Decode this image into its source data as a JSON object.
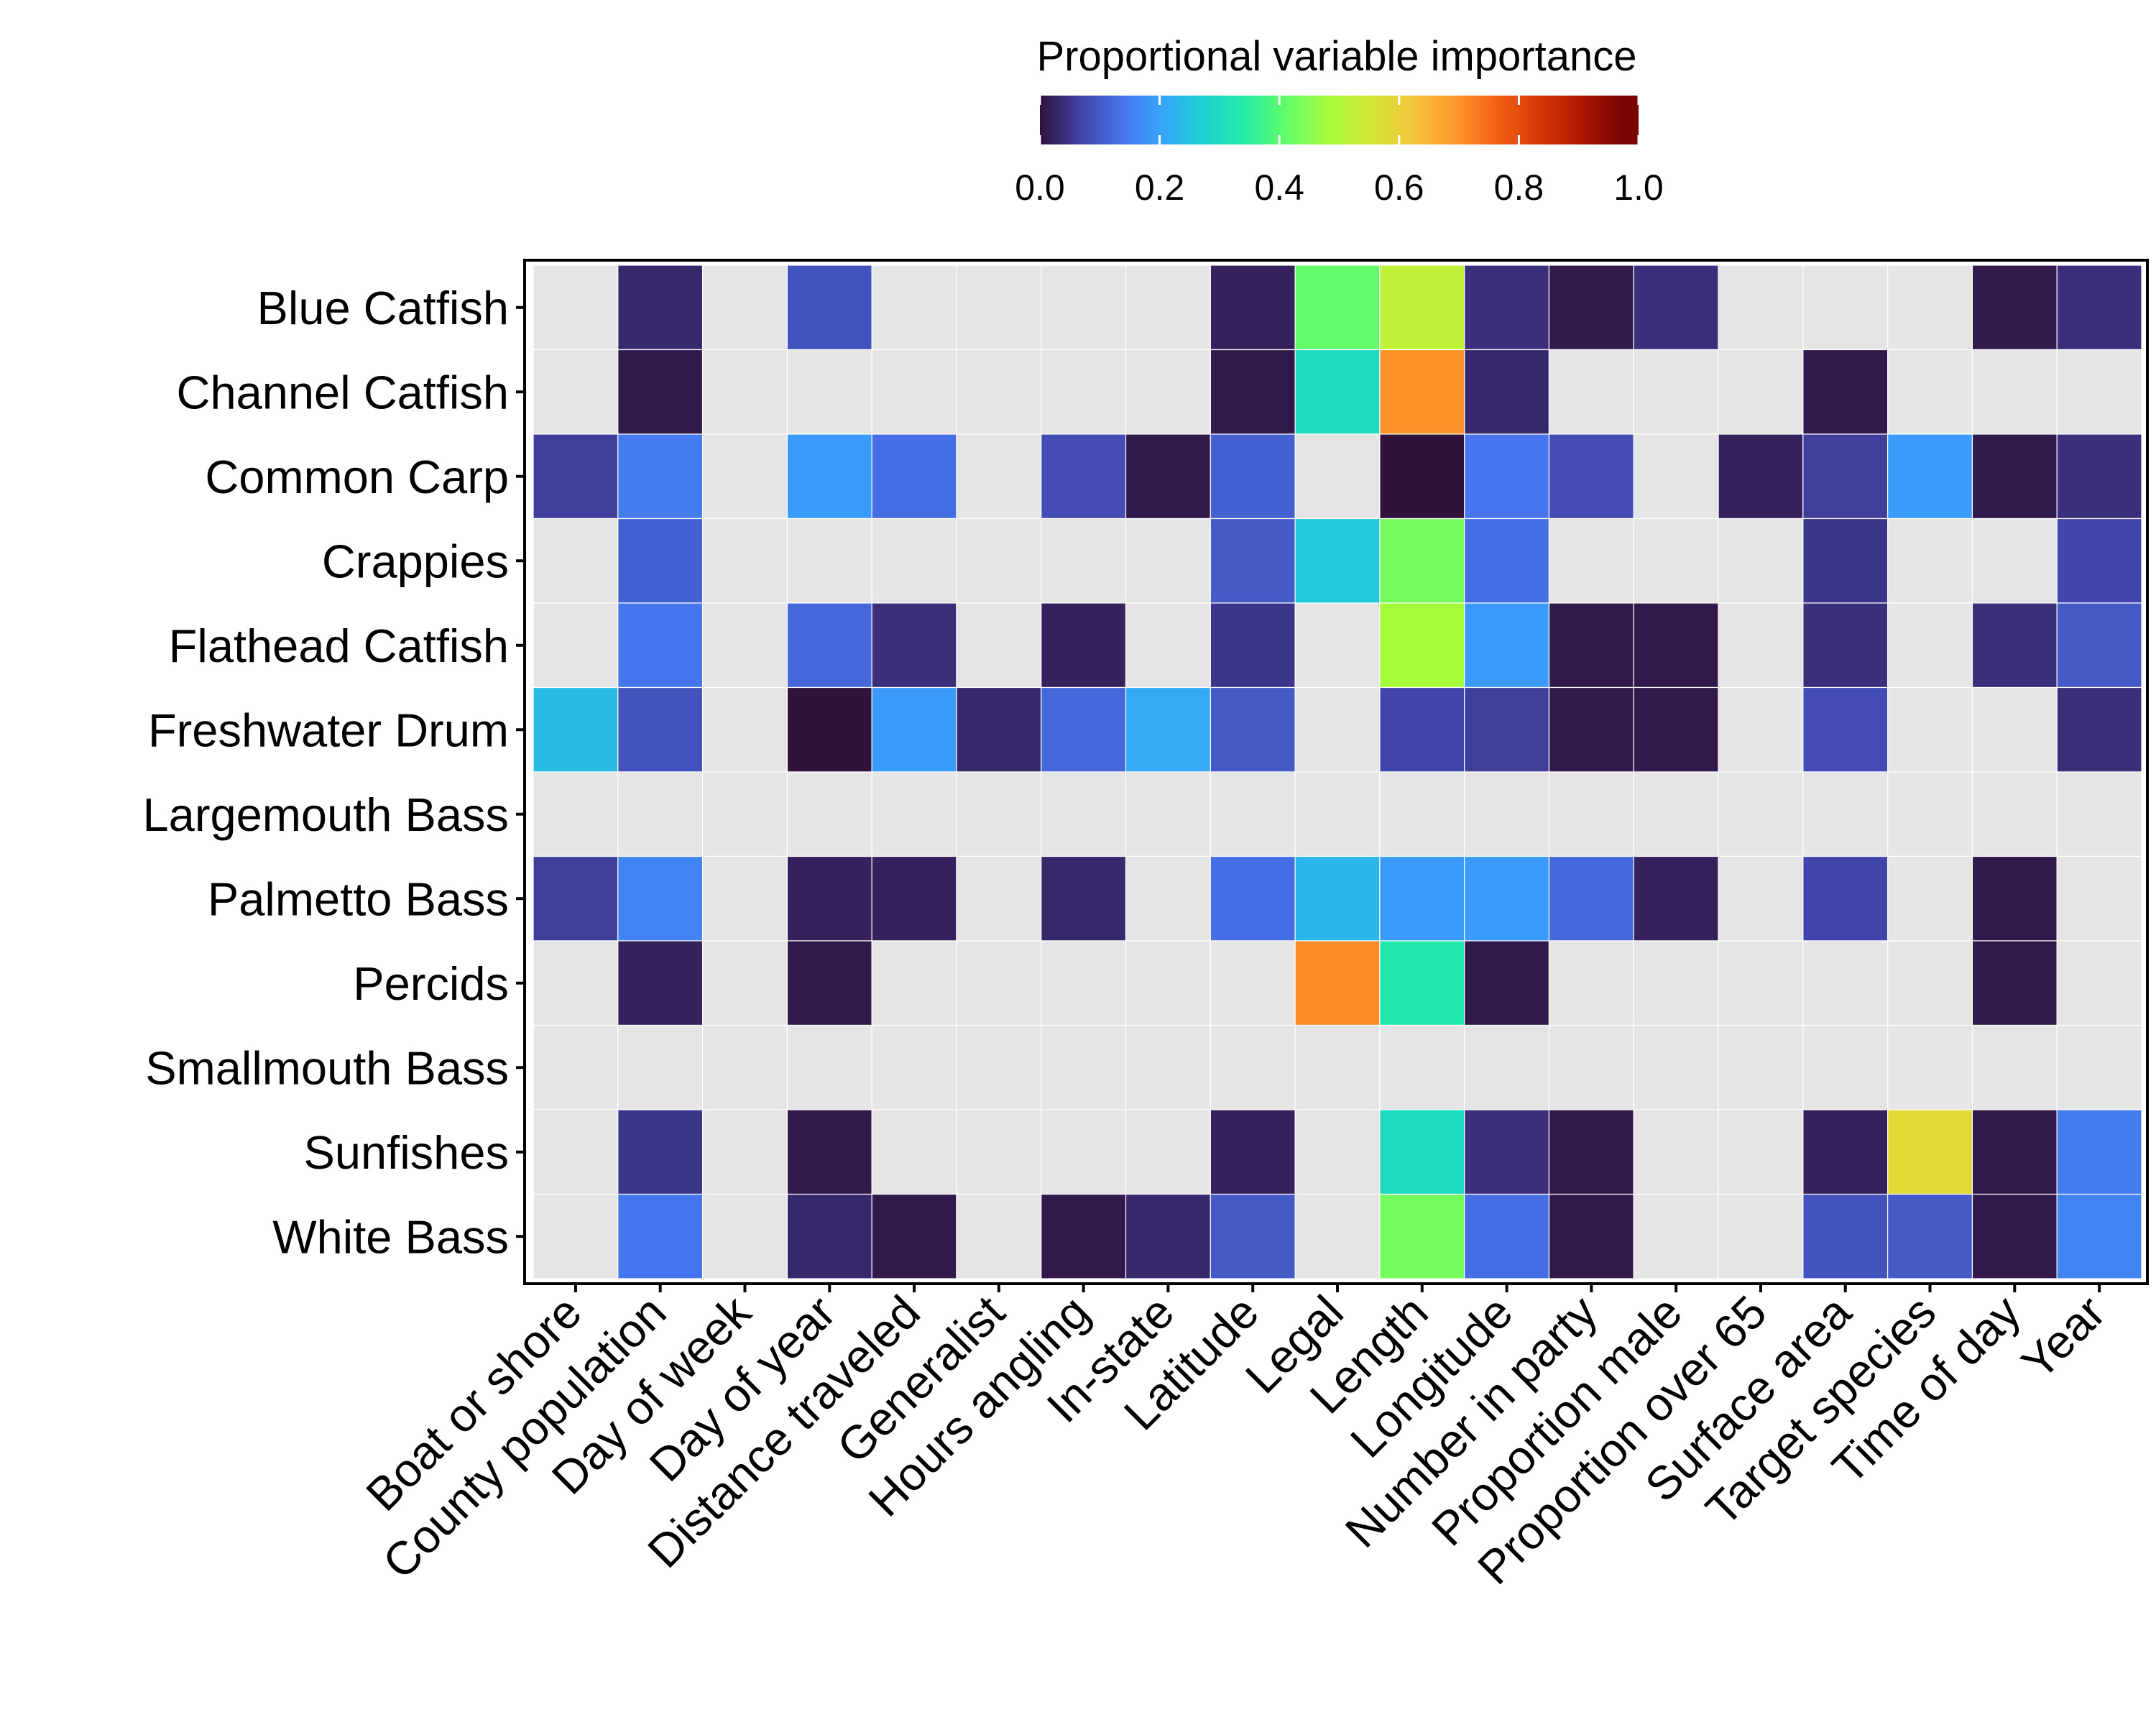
{
  "chart_data": {
    "type": "heatmap",
    "legend": {
      "title": "Proportional variable importance",
      "position": "top",
      "range": [
        0,
        1
      ],
      "ticks": [
        0.0,
        0.2,
        0.4,
        0.6,
        0.8,
        1.0
      ],
      "tick_labels": [
        "0.0",
        "0.2",
        "0.4",
        "0.6",
        "0.8",
        "1.0"
      ],
      "colormap": "turbo"
    },
    "na_color": "#e5e5e5",
    "rows": [
      "Blue Catfish",
      "Channel Catfish",
      "Common Carp",
      "Crappies",
      "Flathead Catfish",
      "Freshwater Drum",
      "Largemouth Bass",
      "Palmetto Bass",
      "Percids",
      "Smallmouth Bass",
      "Sunfishes",
      "White Bass"
    ],
    "columns": [
      "Boat or shore",
      "County population",
      "Day of week",
      "Day of year",
      "Distance traveled",
      "Generalist",
      "Hours angling",
      "In-state",
      "Latitude",
      "Legal",
      "Length",
      "Longitude",
      "Number in party",
      "Proportion male",
      "Proportion over 65",
      "Surface area",
      "Target species",
      "Time of day",
      "Year"
    ],
    "values": [
      [
        null,
        0.03,
        null,
        0.09,
        null,
        null,
        null,
        null,
        0.02,
        0.41,
        0.52,
        0.04,
        0.01,
        0.04,
        null,
        null,
        null,
        0.01,
        0.04
      ],
      [
        null,
        0.01,
        null,
        null,
        null,
        null,
        null,
        null,
        0.01,
        0.3,
        0.7,
        0.03,
        null,
        null,
        null,
        0.01,
        null,
        null,
        null
      ],
      [
        0.06,
        0.15,
        null,
        0.19,
        0.13,
        null,
        0.08,
        0.01,
        0.11,
        null,
        0.0,
        0.14,
        0.08,
        null,
        0.02,
        0.06,
        0.19,
        0.01,
        0.04
      ],
      [
        null,
        0.11,
        null,
        null,
        null,
        null,
        null,
        null,
        0.1,
        0.26,
        0.43,
        0.13,
        null,
        null,
        null,
        0.05,
        null,
        null,
        0.07
      ],
      [
        null,
        0.14,
        null,
        0.12,
        0.04,
        null,
        0.02,
        null,
        0.05,
        null,
        0.48,
        0.19,
        0.01,
        0.01,
        null,
        0.04,
        null,
        0.04,
        0.1
      ],
      [
        0.24,
        0.09,
        null,
        0.0,
        0.19,
        0.03,
        0.12,
        0.21,
        0.1,
        null,
        0.07,
        0.06,
        0.01,
        0.01,
        null,
        0.08,
        null,
        null,
        0.04
      ],
      [
        null,
        null,
        null,
        null,
        null,
        null,
        null,
        null,
        null,
        null,
        null,
        null,
        null,
        null,
        null,
        null,
        null,
        null,
        null
      ],
      [
        0.06,
        0.16,
        null,
        0.02,
        0.02,
        null,
        0.03,
        null,
        0.13,
        0.23,
        0.19,
        0.19,
        0.12,
        0.02,
        null,
        0.07,
        null,
        0.01,
        null
      ],
      [
        null,
        0.02,
        null,
        0.01,
        null,
        null,
        null,
        null,
        null,
        0.71,
        0.33,
        0.01,
        null,
        null,
        null,
        null,
        null,
        0.01,
        null
      ],
      [
        null,
        null,
        null,
        null,
        null,
        null,
        null,
        null,
        null,
        null,
        null,
        null,
        null,
        null,
        null,
        null,
        null,
        null,
        null
      ],
      [
        null,
        0.05,
        null,
        0.01,
        null,
        null,
        null,
        null,
        0.02,
        null,
        0.3,
        0.04,
        0.01,
        null,
        null,
        0.02,
        0.58,
        0.01,
        0.15
      ],
      [
        null,
        0.14,
        null,
        0.03,
        0.01,
        null,
        0.01,
        0.03,
        0.1,
        null,
        0.43,
        0.13,
        0.01,
        null,
        null,
        0.09,
        0.1,
        0.01,
        0.16
      ]
    ]
  }
}
